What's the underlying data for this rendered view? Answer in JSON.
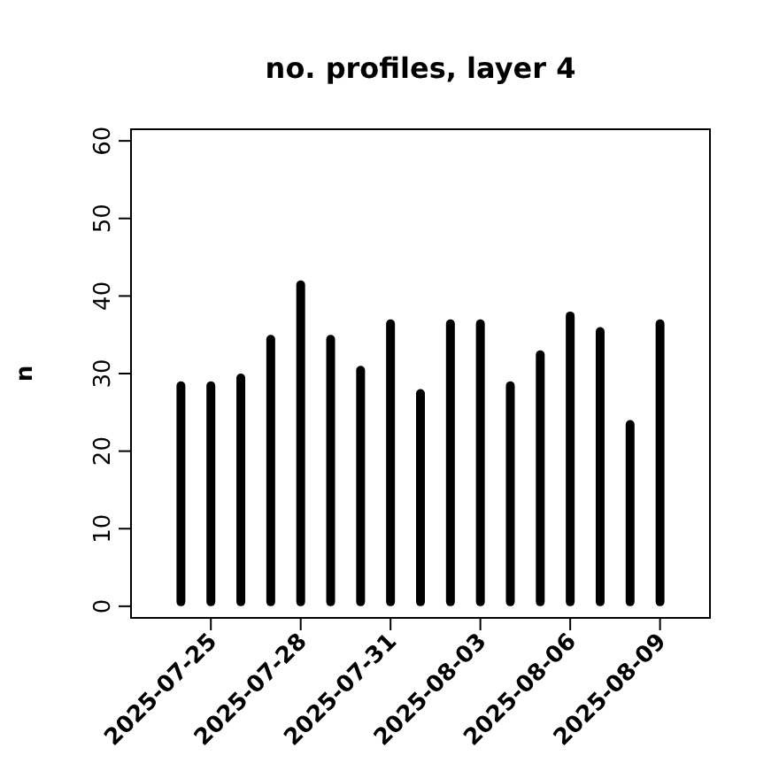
{
  "chart_data": {
    "type": "bar",
    "title": "no. profiles, layer 4",
    "ylabel": "n",
    "x": [
      "2025-07-24",
      "2025-07-25",
      "2025-07-26",
      "2025-07-27",
      "2025-07-28",
      "2025-07-29",
      "2025-07-30",
      "2025-07-31",
      "2025-08-01",
      "2025-08-02",
      "2025-08-03",
      "2025-08-04",
      "2025-08-05",
      "2025-08-06",
      "2025-08-07",
      "2025-08-08",
      "2025-08-09"
    ],
    "values": [
      29,
      29,
      30,
      35,
      42,
      35,
      31,
      37,
      28,
      37,
      37,
      29,
      33,
      38,
      36,
      24,
      37
    ],
    "color": "#000000",
    "xlim": [
      "2025-07-22T08:00",
      "2025-08-10T16:00"
    ],
    "xticks": [
      "2025-07-25",
      "2025-07-28",
      "2025-07-31",
      "2025-08-03",
      "2025-08-06",
      "2025-08-09"
    ],
    "ylim": [
      -1.5,
      61.5
    ],
    "yticks": [
      0,
      10,
      20,
      30,
      40,
      50,
      60
    ],
    "grid": false
  }
}
